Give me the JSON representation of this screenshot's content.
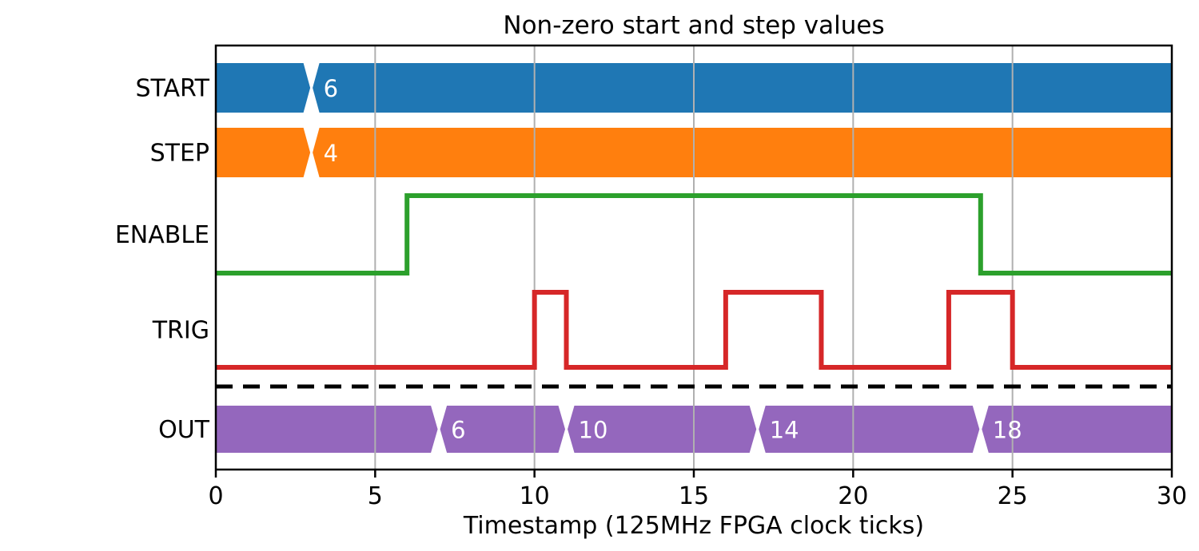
{
  "chart_data": {
    "type": "line",
    "subtype": "digital-timing-diagram",
    "title": "Non-zero start and step values",
    "xlabel": "Timestamp (125MHz FPGA clock ticks)",
    "xlim": [
      0,
      30
    ],
    "xticks": [
      0,
      5,
      10,
      15,
      20,
      25,
      30
    ],
    "grid": "vertical gridlines at interior xticks",
    "legend": "none",
    "signals": [
      {
        "name": "START",
        "kind": "bus",
        "color": "#1f77b4",
        "segments": [
          {
            "start": 0,
            "end": 3,
            "label": ""
          },
          {
            "start": 3,
            "end": 30,
            "label": "6"
          }
        ]
      },
      {
        "name": "STEP",
        "kind": "bus",
        "color": "#ff7f0e",
        "segments": [
          {
            "start": 0,
            "end": 3,
            "label": ""
          },
          {
            "start": 3,
            "end": 30,
            "label": "4"
          }
        ]
      },
      {
        "name": "ENABLE",
        "kind": "logic",
        "color": "#2ca02c",
        "wave": [
          {
            "t": 0,
            "v": 0
          },
          {
            "t": 6,
            "v": 1
          },
          {
            "t": 24,
            "v": 0
          }
        ]
      },
      {
        "name": "TRIG",
        "kind": "logic",
        "color": "#d62728",
        "wave": [
          {
            "t": 0,
            "v": 0
          },
          {
            "t": 10,
            "v": 1
          },
          {
            "t": 11,
            "v": 0
          },
          {
            "t": 16,
            "v": 1
          },
          {
            "t": 19,
            "v": 0
          },
          {
            "t": 23,
            "v": 1
          },
          {
            "t": 25,
            "v": 0
          }
        ]
      },
      {
        "name": "OUT",
        "kind": "bus",
        "color": "#9467bd",
        "segments": [
          {
            "start": 0,
            "end": 7,
            "label": ""
          },
          {
            "start": 7,
            "end": 11,
            "label": "6"
          },
          {
            "start": 11,
            "end": 17,
            "label": "10"
          },
          {
            "start": 17,
            "end": 24,
            "label": "14"
          },
          {
            "start": 24,
            "end": 30,
            "label": "18"
          }
        ]
      }
    ],
    "separator": {
      "style": "dashed",
      "color": "#000000",
      "position": "between TRIG and OUT"
    },
    "colors": {
      "grid": "#b0b0b0",
      "axis": "#000000",
      "bus_value_text": "#ffffff",
      "background": "#ffffff"
    }
  }
}
